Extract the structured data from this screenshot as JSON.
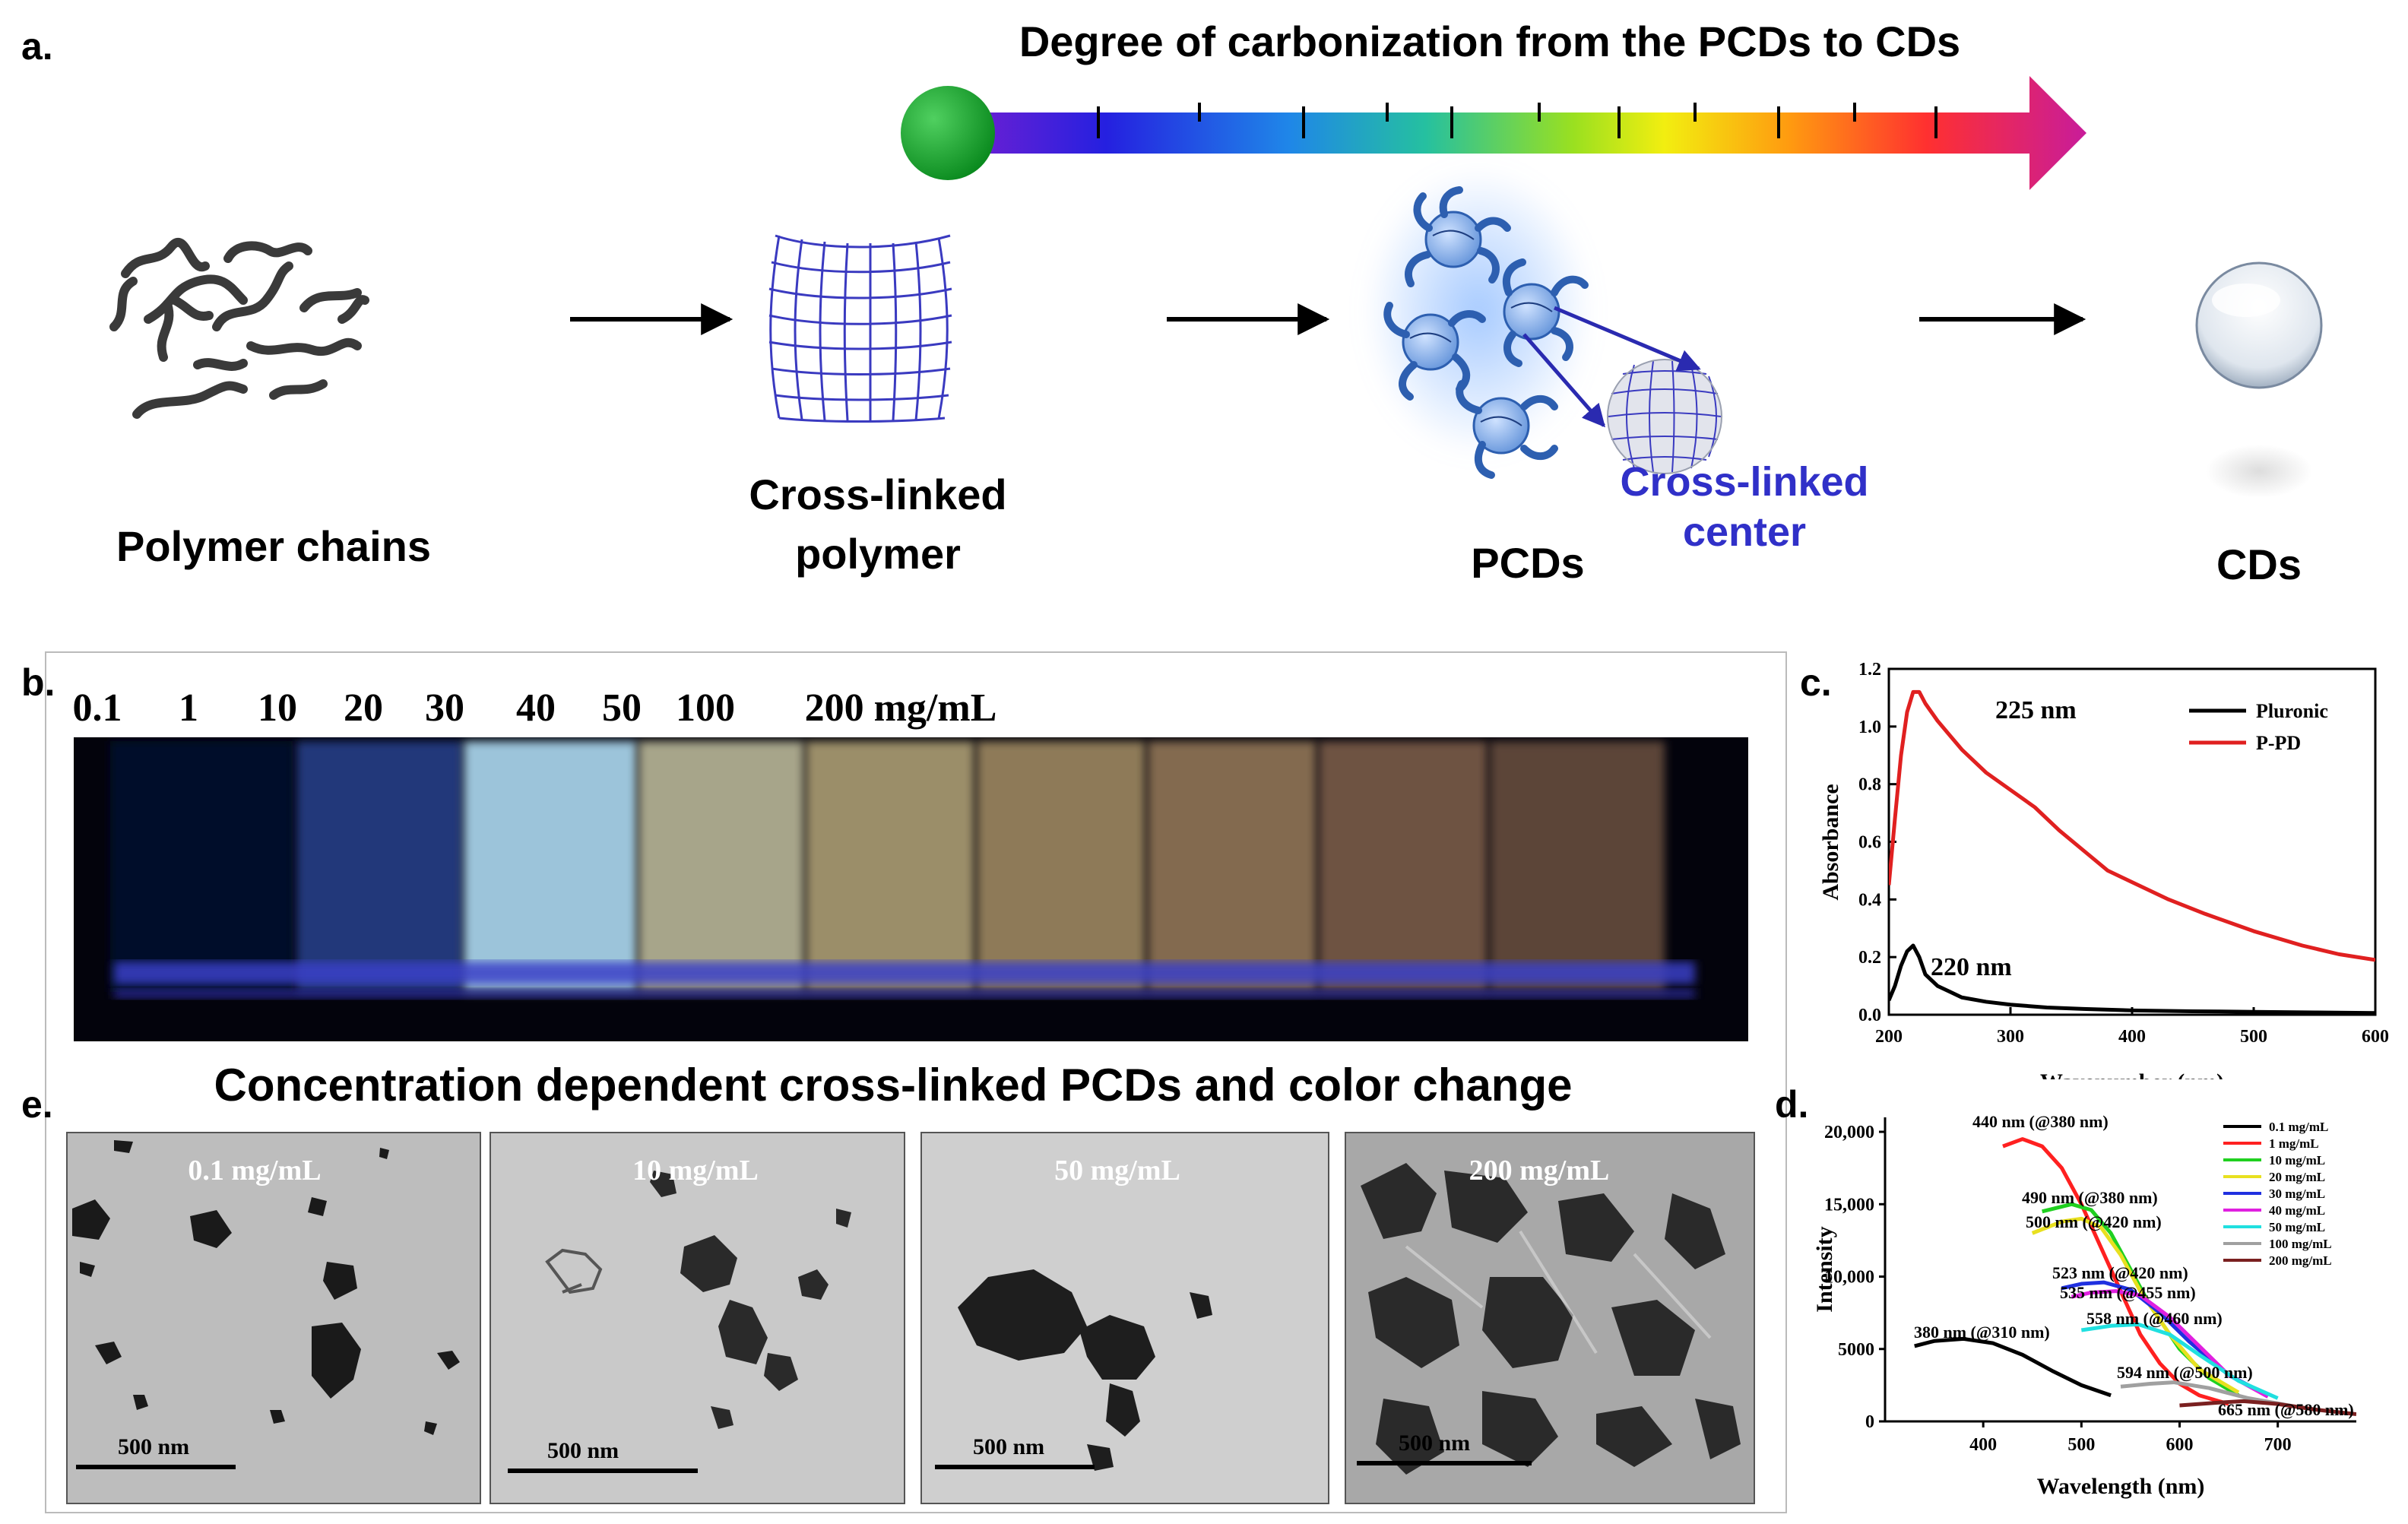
{
  "panel_a": {
    "label": "a.",
    "scale_title": "Degree of carbonization from the PCDs to CDs",
    "steps": [
      "Polymer chains",
      "Cross-linked",
      "polymer",
      "PCDs",
      "CDs"
    ],
    "callout_line1": "Cross-linked",
    "callout_line2": "center"
  },
  "panel_b": {
    "label": "b.",
    "concentrations": [
      "0.1",
      "1",
      "10",
      "20",
      "30",
      "40",
      "50",
      "100",
      "200 mg/mL"
    ],
    "vial_colors": [
      "#050a2a",
      "#24387a",
      "#9cc4da",
      "#a7a58a",
      "#9b8e69",
      "#8e7a58",
      "#836a4f",
      "#6e5243",
      "#5c4538"
    ],
    "caption": "Concentration dependent cross-linked PCDs and color change"
  },
  "panel_c": {
    "label": "c.",
    "chart_data": {
      "type": "line",
      "xlabel": "Wavenumber (nm)",
      "ylabel": "Absorbance",
      "xlim": [
        200,
        600
      ],
      "ylim": [
        0,
        1.2
      ],
      "xticks": [
        "200",
        "300",
        "400",
        "500",
        "600"
      ],
      "yticks": [
        "0.0",
        "0.2",
        "0.4",
        "0.6",
        "0.8",
        "1.0",
        "1.2"
      ],
      "legend": [
        "Pluronic",
        "P-PD"
      ],
      "series": [
        {
          "name": "Pluronic",
          "color": "#000000",
          "x": [
            200,
            205,
            210,
            215,
            220,
            225,
            230,
            240,
            250,
            260,
            280,
            300,
            330,
            360,
            400,
            450,
            500,
            550,
            600
          ],
          "y": [
            0.05,
            0.1,
            0.17,
            0.22,
            0.24,
            0.2,
            0.14,
            0.1,
            0.08,
            0.06,
            0.045,
            0.035,
            0.025,
            0.02,
            0.015,
            0.012,
            0.01,
            0.008,
            0.006
          ]
        },
        {
          "name": "P-PD",
          "color": "#e02020",
          "x": [
            200,
            205,
            210,
            215,
            220,
            225,
            230,
            240,
            250,
            260,
            280,
            300,
            320,
            340,
            360,
            380,
            400,
            430,
            460,
            500,
            540,
            570,
            600
          ],
          "y": [
            0.45,
            0.68,
            0.9,
            1.05,
            1.12,
            1.12,
            1.08,
            1.02,
            0.97,
            0.92,
            0.84,
            0.78,
            0.72,
            0.64,
            0.57,
            0.5,
            0.46,
            0.4,
            0.35,
            0.29,
            0.24,
            0.21,
            0.19
          ]
        }
      ],
      "annotations": [
        "225 nm",
        "220 nm"
      ]
    }
  },
  "panel_d": {
    "label": "d.",
    "chart_data": {
      "type": "line",
      "xlabel": "Wavelength (nm)",
      "ylabel": "Intensity",
      "xlim": [
        300,
        780
      ],
      "ylim": [
        0,
        21000
      ],
      "xticks": [
        "400",
        "500",
        "600",
        "700"
      ],
      "yticks": [
        "0",
        "5000",
        "10,000",
        "15,000",
        "20,000"
      ],
      "legend": [
        "0.1 mg/mL",
        "1 mg/mL",
        "10 mg/mL",
        "20 mg/mL",
        "30 mg/mL",
        "40 mg/mL",
        "50 mg/mL",
        "100 mg/mL",
        "200 mg/mL"
      ],
      "series": [
        {
          "name": "0.1 mg/mL",
          "color": "#000000",
          "x": [
            330,
            350,
            380,
            410,
            440,
            470,
            500,
            530
          ],
          "y": [
            5200,
            5550,
            5700,
            5400,
            4600,
            3500,
            2500,
            1800
          ]
        },
        {
          "name": "1 mg/mL",
          "color": "#ff2020",
          "x": [
            420,
            440,
            460,
            480,
            500,
            520,
            540,
            560,
            580,
            600,
            620,
            650
          ],
          "y": [
            19000,
            19500,
            19000,
            17500,
            15000,
            12000,
            9000,
            6000,
            4000,
            2600,
            1800,
            1200
          ]
        },
        {
          "name": "10 mg/mL",
          "color": "#20d020",
          "x": [
            460,
            490,
            510,
            530,
            550,
            570,
            600,
            630,
            660
          ],
          "y": [
            14500,
            15000,
            14600,
            13000,
            10500,
            8000,
            5000,
            3000,
            1800
          ]
        },
        {
          "name": "20 mg/mL",
          "color": "#e8e020",
          "x": [
            450,
            480,
            500,
            520,
            540,
            560,
            590,
            620,
            660
          ],
          "y": [
            13000,
            13800,
            14000,
            13400,
            11500,
            9000,
            6000,
            3600,
            2000
          ]
        },
        {
          "name": "30 mg/mL",
          "color": "#2030e0",
          "x": [
            480,
            500,
            523,
            550,
            580,
            610,
            650,
            690
          ],
          "y": [
            9200,
            9500,
            9600,
            9100,
            7500,
            5500,
            3200,
            1800
          ]
        },
        {
          "name": "40 mg/mL",
          "color": "#e020e0",
          "x": [
            490,
            510,
            535,
            560,
            590,
            620,
            650,
            690
          ],
          "y": [
            8600,
            8900,
            9000,
            8700,
            7200,
            5200,
            3200,
            1700
          ]
        },
        {
          "name": "50 mg/mL",
          "color": "#20e0e0",
          "x": [
            500,
            530,
            558,
            590,
            620,
            660,
            700
          ],
          "y": [
            6300,
            6600,
            6700,
            6000,
            4600,
            2800,
            1600
          ]
        },
        {
          "name": "100 mg/mL",
          "color": "#a0a0a0",
          "x": [
            540,
            570,
            594,
            630,
            670,
            720
          ],
          "y": [
            2400,
            2600,
            2700,
            2300,
            1600,
            1000
          ]
        },
        {
          "name": "200 mg/mL",
          "color": "#7a2020",
          "x": [
            600,
            640,
            665,
            700,
            740,
            780
          ],
          "y": [
            1100,
            1300,
            1400,
            1200,
            800,
            500
          ]
        }
      ],
      "annotations": [
        "440 nm (@380 nm)",
        "490 nm (@380 nm)",
        "500 nm (@420 nm)",
        "523 nm (@420 nm)",
        "535 nm (@455 nm)",
        "558 nm (@460 nm)",
        "380 nm (@310 nm)",
        "594 nm (@500 nm)",
        "665 nm (@580 nm)"
      ]
    }
  },
  "panel_e": {
    "label": "e.",
    "tiles": [
      {
        "title": "0.1 mg/mL",
        "scale": "500 nm"
      },
      {
        "title": "10 mg/mL",
        "scale": "500 nm"
      },
      {
        "title": "50 mg/mL",
        "scale": "500 nm"
      },
      {
        "title": "200 mg/mL",
        "scale": "500 nm"
      }
    ]
  }
}
